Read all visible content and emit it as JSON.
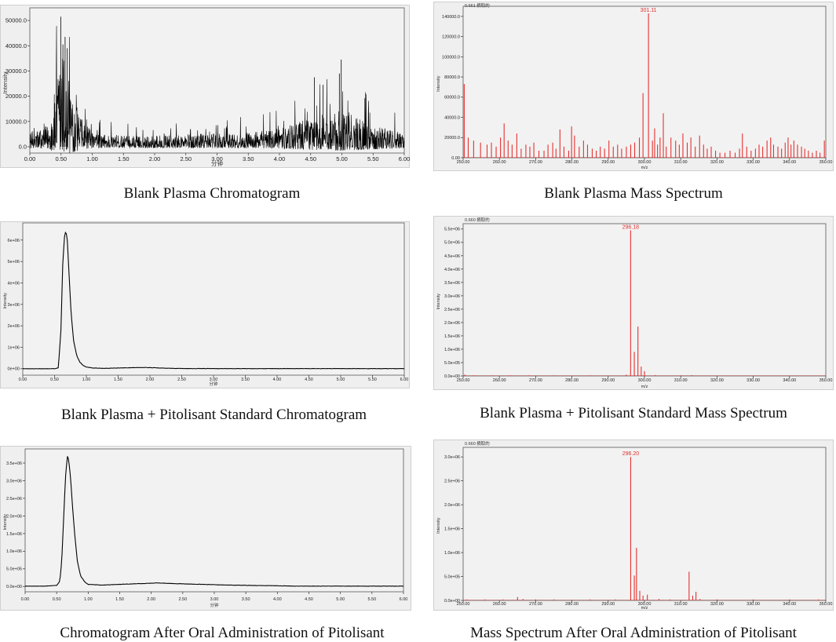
{
  "captions": [
    "Blank Plasma Chromatogram",
    "Blank Plasma Mass Spectrum",
    "Blank Plasma + Pitolisant Standard Chromatogram",
    "Blank Plasma + Pitolisant Standard Mass Spectrum",
    "Chromatogram After Oral Administration of Pitolisant",
    "Mass Spectrum After Oral Administration of Pitolisant"
  ],
  "colors": {
    "plot_background": "#f0f0f0",
    "chromatogram_trace": "#000000",
    "spectrum_bars": "#e83030",
    "peak_label": "#e03030"
  },
  "chart_data": [
    {
      "id": "chrom1",
      "type": "line",
      "caption": "Blank Plasma Chromatogram",
      "ylabel": "Intensity",
      "xlabel": "分钟",
      "xlim": [
        0,
        6
      ],
      "ylim": [
        -2500,
        55000
      ],
      "x_ticks": [
        "0.00",
        "0.50",
        "1.00",
        "1.50",
        "2.00",
        "2.50",
        "3.00",
        "3.50",
        "4.00",
        "4.50",
        "5.00",
        "5.50",
        "6.00"
      ],
      "y_ticks": [
        {
          "value": 0,
          "label": "0.0"
        },
        {
          "value": 10000,
          "label": "10000.0"
        },
        {
          "value": 20000,
          "label": "20000.0"
        },
        {
          "value": 30000,
          "label": "30000.0"
        },
        {
          "value": 40000,
          "label": "40000.0"
        },
        {
          "value": 50000,
          "label": "50000.0"
        }
      ],
      "noise_profile": {
        "x": [
          0.0,
          0.3,
          0.45,
          0.5,
          0.55,
          0.6,
          0.7,
          0.85,
          1.0,
          1.5,
          2.0,
          2.5,
          3.0,
          3.5,
          4.0,
          4.3,
          4.5,
          4.8,
          5.0,
          5.3,
          5.6,
          6.0
        ],
        "y": [
          4000,
          6000,
          20000,
          26000,
          27000,
          22000,
          14000,
          7000,
          4000,
          3000,
          3000,
          3500,
          3500,
          4000,
          5000,
          7000,
          8000,
          9500,
          10500,
          8000,
          6000,
          4000
        ]
      },
      "spikes": [
        [
          0.495,
          51500
        ],
        [
          0.565,
          43500
        ],
        [
          0.6,
          39000
        ],
        [
          0.53,
          40500
        ],
        [
          4.99,
          34500
        ],
        [
          4.96,
          29000
        ],
        [
          4.56,
          27500
        ],
        [
          4.7,
          24500
        ]
      ]
    },
    {
      "id": "ms1",
      "type": "bar",
      "caption": "Blank Plasma Mass Spectrum",
      "header": "0.661 摘取的",
      "ylabel": "Intensity",
      "xlabel": "m/z",
      "xlim": [
        250,
        350
      ],
      "ylim": [
        0,
        150000
      ],
      "x_ticks": [
        "250.00",
        "260.00",
        "270.00",
        "280.00",
        "290.00",
        "300.00",
        "310.00",
        "320.00",
        "330.00",
        "340.00",
        "350.00"
      ],
      "y_ticks": [
        {
          "value": 0,
          "label": "0.00"
        },
        {
          "value": 20000,
          "label": "20000.0"
        },
        {
          "value": 40000,
          "label": "40000.0"
        },
        {
          "value": 60000,
          "label": "60000.0"
        },
        {
          "value": 80000,
          "label": "80000.0"
        },
        {
          "value": 100000,
          "label": "100000.0"
        },
        {
          "value": 120000,
          "label": "120000.0"
        },
        {
          "value": 140000,
          "label": "140000.0"
        }
      ],
      "peak_label": "301.11",
      "peak_mz": 301.11,
      "peaks": [
        [
          250.3,
          73000
        ],
        [
          251.4,
          20000
        ],
        [
          252.9,
          17000
        ],
        [
          254.8,
          15000
        ],
        [
          256.6,
          13000
        ],
        [
          257.8,
          15000
        ],
        [
          259.1,
          11000
        ],
        [
          260.3,
          20000
        ],
        [
          261.3,
          34000
        ],
        [
          262.4,
          17000
        ],
        [
          263.5,
          13000
        ],
        [
          264.8,
          24000
        ],
        [
          266.0,
          9000
        ],
        [
          267.3,
          13000
        ],
        [
          268.4,
          11000
        ],
        [
          269.5,
          15000
        ],
        [
          270.9,
          7000
        ],
        [
          272.3,
          7000
        ],
        [
          273.4,
          13000
        ],
        [
          274.7,
          15000
        ],
        [
          275.6,
          9000
        ],
        [
          276.7,
          28000
        ],
        [
          277.8,
          11000
        ],
        [
          279.1,
          7000
        ],
        [
          279.9,
          31000
        ],
        [
          280.7,
          22000
        ],
        [
          282.0,
          11000
        ],
        [
          283.2,
          17000
        ],
        [
          284.3,
          13000
        ],
        [
          285.6,
          9000
        ],
        [
          286.7,
          7000
        ],
        [
          287.8,
          11000
        ],
        [
          289.0,
          9000
        ],
        [
          290.2,
          17000
        ],
        [
          291.4,
          11000
        ],
        [
          292.6,
          13000
        ],
        [
          293.7,
          9000
        ],
        [
          295.0,
          11000
        ],
        [
          296.2,
          13000
        ],
        [
          297.3,
          15000
        ],
        [
          298.6,
          20000
        ],
        [
          299.6,
          64000
        ],
        [
          301.11,
          143000
        ],
        [
          302.2,
          17000
        ],
        [
          302.8,
          29000
        ],
        [
          303.6,
          13000
        ],
        [
          304.3,
          20000
        ],
        [
          305.2,
          44000
        ],
        [
          306.0,
          11000
        ],
        [
          307.3,
          20000
        ],
        [
          308.6,
          17000
        ],
        [
          309.6,
          13000
        ],
        [
          310.6,
          24000
        ],
        [
          311.8,
          15000
        ],
        [
          312.8,
          20000
        ],
        [
          314.0,
          11000
        ],
        [
          315.2,
          22000
        ],
        [
          316.3,
          13000
        ],
        [
          317.3,
          9000
        ],
        [
          318.4,
          11000
        ],
        [
          319.6,
          7000
        ],
        [
          320.8,
          5000
        ],
        [
          322.2,
          5000
        ],
        [
          323.6,
          7000
        ],
        [
          325.0,
          5000
        ],
        [
          326.2,
          9000
        ],
        [
          327.0,
          24000
        ],
        [
          328.2,
          11000
        ],
        [
          329.4,
          7000
        ],
        [
          330.6,
          9000
        ],
        [
          331.6,
          13000
        ],
        [
          332.6,
          11000
        ],
        [
          333.8,
          17000
        ],
        [
          334.8,
          20000
        ],
        [
          335.6,
          13000
        ],
        [
          336.8,
          11000
        ],
        [
          337.8,
          9000
        ],
        [
          338.8,
          15000
        ],
        [
          339.6,
          20000
        ],
        [
          340.4,
          13000
        ],
        [
          341.2,
          17000
        ],
        [
          342.2,
          13000
        ],
        [
          343.3,
          11000
        ],
        [
          344.2,
          9000
        ],
        [
          345.2,
          7000
        ],
        [
          346.3,
          5000
        ],
        [
          347.4,
          7000
        ],
        [
          348.4,
          5000
        ],
        [
          349.6,
          17000
        ]
      ]
    },
    {
      "id": "chrom2",
      "type": "line",
      "caption": "Blank Plasma + Pitolisant Standard Chromatogram",
      "ylabel": "Intensity",
      "xlabel": "分钟",
      "xlim": [
        0,
        6
      ],
      "ylim": [
        -300000,
        6800000
      ],
      "x_ticks": [
        "0.00",
        "0.50",
        "1.00",
        "1.50",
        "2.00",
        "2.50",
        "3.00",
        "3.50",
        "4.00",
        "4.50",
        "5.00",
        "5.50",
        "6.00"
      ],
      "y_ticks": [
        {
          "value": 0,
          "label": "0e+00"
        },
        {
          "value": 1000000,
          "label": "1e+06"
        },
        {
          "value": 2000000,
          "label": "2e+06"
        },
        {
          "value": 3000000,
          "label": "3e+06"
        },
        {
          "value": 4000000,
          "label": "4e+06"
        },
        {
          "value": 5000000,
          "label": "5e+06"
        },
        {
          "value": 6000000,
          "label": "6e+06"
        }
      ],
      "trace": {
        "x": [
          0.0,
          0.5,
          0.56,
          0.6,
          0.63,
          0.66,
          0.68,
          0.7,
          0.73,
          0.76,
          0.8,
          0.85,
          0.9,
          0.95,
          1.0,
          1.1,
          1.3,
          1.6,
          1.9,
          2.2,
          2.5,
          3.0,
          4.0,
          5.0,
          6.0
        ],
        "y": [
          0,
          0,
          50000,
          1800000,
          5000000,
          6300000,
          6400000,
          6000000,
          4300000,
          2600000,
          1300000,
          600000,
          300000,
          150000,
          80000,
          30000,
          20000,
          40000,
          60000,
          30000,
          10000,
          5000,
          5000,
          5000,
          5000
        ]
      }
    },
    {
      "id": "ms2",
      "type": "bar",
      "caption": "Blank Plasma + Pitolisant Standard Mass Spectrum",
      "header": "0.660 摘取的",
      "ylabel": "Intensity",
      "xlabel": "m/z",
      "xlim": [
        250,
        350
      ],
      "ylim": [
        0,
        5700000
      ],
      "x_ticks": [
        "250.00",
        "260.00",
        "270.00",
        "280.00",
        "290.00",
        "300.00",
        "310.00",
        "320.00",
        "330.00",
        "340.00",
        "350.00"
      ],
      "y_ticks": [
        {
          "value": 0,
          "label": "0.0e+00"
        },
        {
          "value": 500000,
          "label": "5.0e+05"
        },
        {
          "value": 1000000,
          "label": "1.0e+06"
        },
        {
          "value": 1500000,
          "label": "1.5e+06"
        },
        {
          "value": 2000000,
          "label": "2.0e+06"
        },
        {
          "value": 2500000,
          "label": "2.5e+06"
        },
        {
          "value": 3000000,
          "label": "3.0e+06"
        },
        {
          "value": 3500000,
          "label": "3.5e+06"
        },
        {
          "value": 4000000,
          "label": "4.0e+06"
        },
        {
          "value": 4500000,
          "label": "4.5e+06"
        },
        {
          "value": 5000000,
          "label": "5.0e+06"
        },
        {
          "value": 5500000,
          "label": "5.5e+06"
        }
      ],
      "peak_label": "296.18",
      "peak_mz": 296.18,
      "peaks": [
        [
          250.5,
          50000
        ],
        [
          253.0,
          20000
        ],
        [
          258.0,
          20000
        ],
        [
          263.0,
          20000
        ],
        [
          268.0,
          20000
        ],
        [
          275.0,
          20000
        ],
        [
          285.0,
          20000
        ],
        [
          295.0,
          50000
        ],
        [
          296.18,
          5450000
        ],
        [
          297.2,
          900000
        ],
        [
          298.2,
          1850000
        ],
        [
          299.1,
          350000
        ],
        [
          300.0,
          180000
        ],
        [
          303.0,
          30000
        ],
        [
          310.0,
          20000
        ],
        [
          313.0,
          30000
        ]
      ]
    },
    {
      "id": "chrom3",
      "type": "line",
      "caption": "Chromatogram After Oral Administration of Pitolisant",
      "ylabel": "Intensity",
      "xlabel": "分钟",
      "xlim": [
        0,
        6
      ],
      "ylim": [
        -150000,
        3900000
      ],
      "x_ticks": [
        "0.00",
        "0.50",
        "1.00",
        "1.50",
        "2.00",
        "2.50",
        "3.00",
        "3.50",
        "4.00",
        "4.50",
        "5.00",
        "5.50",
        "6.00"
      ],
      "y_ticks": [
        {
          "value": 0,
          "label": "0.0e+00"
        },
        {
          "value": 500000,
          "label": "5.0e+05"
        },
        {
          "value": 1000000,
          "label": "1.0e+06"
        },
        {
          "value": 1500000,
          "label": "1.5e+06"
        },
        {
          "value": 2000000,
          "label": "2.0e+06"
        },
        {
          "value": 2500000,
          "label": "2.5e+06"
        },
        {
          "value": 3000000,
          "label": "3.0e+06"
        },
        {
          "value": 3500000,
          "label": "3.5e+06"
        }
      ],
      "trace": {
        "x": [
          0.0,
          0.3,
          0.5,
          0.55,
          0.58,
          0.61,
          0.64,
          0.67,
          0.69,
          0.72,
          0.75,
          0.79,
          0.83,
          0.88,
          0.95,
          1.0,
          1.2,
          1.5,
          1.8,
          2.1,
          2.4,
          2.8,
          3.2,
          3.6,
          4.0,
          4.3,
          5.0,
          6.0
        ],
        "y": [
          10000,
          10000,
          30000,
          150000,
          700000,
          1900000,
          3100000,
          3700000,
          3600000,
          3100000,
          2300000,
          1400000,
          700000,
          300000,
          120000,
          60000,
          40000,
          60000,
          80000,
          100000,
          80000,
          60000,
          40000,
          30000,
          20000,
          10000,
          10000,
          10000
        ]
      }
    },
    {
      "id": "ms3",
      "type": "bar",
      "caption": "Mass Spectrum After Oral Administration of Pitolisant",
      "header": "0.660 摘取的",
      "ylabel": "Intensity",
      "xlabel": "m/z",
      "xlim": [
        250,
        350
      ],
      "ylim": [
        0,
        3200000
      ],
      "x_ticks": [
        "250.00",
        "260.00",
        "270.00",
        "280.00",
        "290.00",
        "300.00",
        "310.00",
        "320.00",
        "330.00",
        "340.00",
        "350.00"
      ],
      "y_ticks": [
        {
          "value": 0,
          "label": "0.0e+00"
        },
        {
          "value": 500000,
          "label": "5.0e+05"
        },
        {
          "value": 1000000,
          "label": "1.0e+06"
        },
        {
          "value": 1500000,
          "label": "1.5e+06"
        },
        {
          "value": 2000000,
          "label": "2.0e+06"
        },
        {
          "value": 2500000,
          "label": "2.5e+06"
        },
        {
          "value": 3000000,
          "label": "3.0e+06"
        }
      ],
      "peak_label": "296.20",
      "peak_mz": 296.2,
      "peaks": [
        [
          251.0,
          20000
        ],
        [
          256.0,
          20000
        ],
        [
          261.0,
          20000
        ],
        [
          265.0,
          70000
        ],
        [
          266.5,
          30000
        ],
        [
          270.0,
          20000
        ],
        [
          275.0,
          20000
        ],
        [
          285.0,
          20000
        ],
        [
          292.0,
          20000
        ],
        [
          296.2,
          3000000
        ],
        [
          297.2,
          520000
        ],
        [
          297.8,
          1100000
        ],
        [
          298.7,
          200000
        ],
        [
          299.6,
          100000
        ],
        [
          300.8,
          120000
        ],
        [
          304.0,
          30000
        ],
        [
          307.0,
          20000
        ],
        [
          312.3,
          600000
        ],
        [
          313.3,
          100000
        ],
        [
          314.2,
          180000
        ],
        [
          315.3,
          30000
        ],
        [
          320.0,
          20000
        ],
        [
          330.0,
          20000
        ],
        [
          340.0,
          20000
        ],
        [
          348.0,
          20000
        ]
      ]
    }
  ]
}
